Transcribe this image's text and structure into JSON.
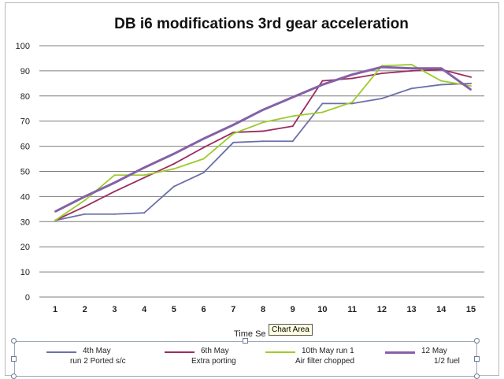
{
  "chart_data": {
    "type": "line",
    "title": "DB i6 modifications 3rd gear acceleration",
    "xlabel": "Time Se",
    "ylabel": "",
    "ylim": [
      0,
      100
    ],
    "yticks": [
      0,
      10,
      20,
      30,
      40,
      50,
      60,
      70,
      80,
      90,
      100
    ],
    "categories": [
      "1",
      "2",
      "3",
      "4",
      "5",
      "6",
      "7",
      "8",
      "9",
      "10",
      "11",
      "12",
      "13",
      "14",
      "15"
    ],
    "grid": true,
    "legend_position": "bottom",
    "series": [
      {
        "name": "4th May",
        "sub": "run 2 Ported s/c",
        "color": "#6b6fa8",
        "values": [
          30.5,
          33,
          33,
          33.5,
          44,
          49.5,
          61.5,
          62,
          62,
          77,
          77,
          79,
          83,
          84.5,
          85
        ]
      },
      {
        "name": "6th May",
        "sub": "Extra porting",
        "color": "#9b2c5e",
        "values": [
          30.5,
          36,
          42,
          47.5,
          53,
          59.5,
          65.5,
          66,
          68,
          86,
          87,
          89,
          90,
          90.5,
          87.5
        ]
      },
      {
        "name": "10th May run 1",
        "sub": "Air filter chopped",
        "color": "#9ccb2c",
        "values": [
          30.5,
          38.5,
          48.5,
          48.5,
          51,
          55,
          65,
          69.5,
          72,
          73.5,
          77.5,
          92,
          92.5,
          86,
          84
        ]
      },
      {
        "name": "12 May",
        "sub": "1/2 fuel",
        "color": "#8461a8",
        "values": [
          34,
          40,
          45.5,
          51.5,
          57,
          63,
          68.5,
          74.5,
          79.5,
          84.5,
          88.5,
          91.5,
          91,
          91,
          82.5
        ]
      }
    ]
  },
  "tooltip": "Chart Area"
}
